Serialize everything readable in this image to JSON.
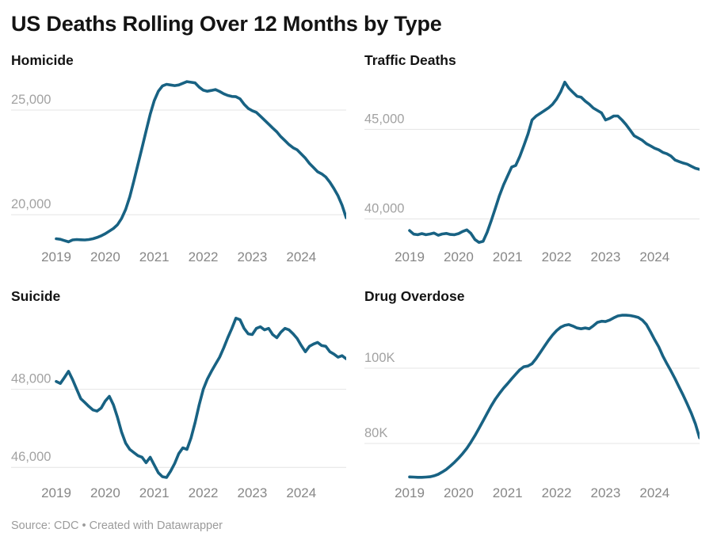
{
  "title": "US Deaths Rolling Over 12 Months by Type",
  "footer": {
    "source_label": "Source: ",
    "source": "CDC",
    "separator": " • ",
    "credit": "Created with Datawrapper"
  },
  "style": {
    "line_color": "#186283",
    "grid_color": "#e4e4e4",
    "y_label_color": "#a2a2a2",
    "x_label_color": "#878787",
    "line_width": 3.6
  },
  "chart_data": [
    {
      "type": "line",
      "title": "Homicide",
      "x_unit": "month",
      "x_range": [
        "2019-01",
        "2024-12"
      ],
      "x_tick_labels": [
        "2019",
        "2020",
        "2021",
        "2022",
        "2023",
        "2024"
      ],
      "y_gridlines": [
        {
          "value": 25000,
          "label": "25,000"
        },
        {
          "value": 20000,
          "label": "20,000"
        }
      ],
      "ylim": [
        18640,
        26780
      ],
      "values": [
        18850,
        18820,
        18760,
        18700,
        18790,
        18810,
        18800,
        18790,
        18810,
        18850,
        18910,
        18990,
        19090,
        19210,
        19340,
        19520,
        19820,
        20250,
        20850,
        21600,
        22400,
        23200,
        24000,
        24800,
        25450,
        25900,
        26150,
        26230,
        26200,
        26170,
        26200,
        26280,
        26360,
        26330,
        26300,
        26100,
        25950,
        25900,
        25940,
        25980,
        25890,
        25780,
        25700,
        25650,
        25640,
        25540,
        25280,
        25080,
        24970,
        24890,
        24710,
        24520,
        24330,
        24140,
        23960,
        23730,
        23540,
        23350,
        23200,
        23100,
        22900,
        22700,
        22450,
        22250,
        22050,
        21950,
        21800,
        21550,
        21250,
        20900,
        20450,
        19850
      ]
    },
    {
      "type": "line",
      "title": "Traffic Deaths",
      "x_unit": "month",
      "x_range": [
        "2019-01",
        "2024-12"
      ],
      "x_tick_labels": [
        "2019",
        "2020",
        "2021",
        "2022",
        "2023",
        "2024"
      ],
      "y_gridlines": [
        {
          "value": 45000,
          "label": "45,000"
        },
        {
          "value": 40000,
          "label": "40,000"
        }
      ],
      "ylim": [
        38650,
        48160
      ],
      "values": [
        39350,
        39150,
        39120,
        39180,
        39120,
        39160,
        39210,
        39090,
        39160,
        39190,
        39130,
        39120,
        39180,
        39300,
        39390,
        39200,
        38850,
        38690,
        38750,
        39250,
        39900,
        40600,
        41300,
        41900,
        42400,
        42900,
        42990,
        43500,
        44100,
        44750,
        45530,
        45750,
        45900,
        46050,
        46200,
        46400,
        46700,
        47100,
        47640,
        47300,
        47070,
        46850,
        46800,
        46580,
        46410,
        46190,
        46060,
        45920,
        45530,
        45620,
        45750,
        45750,
        45530,
        45270,
        44960,
        44650,
        44520,
        44390,
        44200,
        44080,
        43950,
        43860,
        43720,
        43640,
        43510,
        43290,
        43200,
        43120,
        43060,
        42940,
        42830,
        42770
      ]
    },
    {
      "type": "line",
      "title": "Suicide",
      "x_unit": "month",
      "x_range": [
        "2019-01",
        "2024-12"
      ],
      "x_tick_labels": [
        "2019",
        "2020",
        "2021",
        "2022",
        "2023",
        "2024"
      ],
      "y_gridlines": [
        {
          "value": 48000,
          "label": "48,000"
        },
        {
          "value": 46000,
          "label": "46,000"
        }
      ],
      "ylim": [
        45700,
        50060
      ],
      "values": [
        48200,
        48150,
        48300,
        48460,
        48250,
        48000,
        47760,
        47660,
        47560,
        47470,
        47440,
        47520,
        47700,
        47820,
        47600,
        47280,
        46900,
        46620,
        46460,
        46380,
        46300,
        46260,
        46120,
        46260,
        46060,
        45860,
        45760,
        45740,
        45900,
        46100,
        46350,
        46500,
        46460,
        46750,
        47150,
        47600,
        48000,
        48260,
        48460,
        48640,
        48820,
        49060,
        49320,
        49560,
        49820,
        49780,
        49560,
        49420,
        49400,
        49560,
        49600,
        49520,
        49560,
        49400,
        49320,
        49460,
        49560,
        49520,
        49420,
        49300,
        49120,
        48960,
        49100,
        49160,
        49200,
        49120,
        49100,
        48960,
        48900,
        48820,
        48860,
        48780
      ]
    },
    {
      "type": "line",
      "title": "Drug Overdose",
      "x_unit": "month",
      "x_range": [
        "2019-01",
        "2024-12"
      ],
      "x_tick_labels": [
        "2019",
        "2020",
        "2021",
        "2022",
        "2023",
        "2024"
      ],
      "y_gridlines": [
        {
          "value": 100000,
          "label": "100K"
        },
        {
          "value": 80000,
          "label": "80K"
        }
      ],
      "ylim": [
        70530,
        115800
      ],
      "values": [
        71100,
        71050,
        71000,
        71000,
        71050,
        71150,
        71400,
        71800,
        72400,
        73100,
        74000,
        75000,
        76100,
        77300,
        78700,
        80300,
        82100,
        84000,
        86000,
        88000,
        90000,
        91800,
        93300,
        94700,
        95900,
        97200,
        98400,
        99600,
        100400,
        100600,
        101200,
        102600,
        104200,
        105800,
        107400,
        108800,
        110000,
        110900,
        111400,
        111600,
        111200,
        110700,
        110500,
        110700,
        110500,
        111300,
        112200,
        112500,
        112400,
        112800,
        113400,
        113900,
        114100,
        114100,
        114000,
        113800,
        113500,
        112800,
        111600,
        109700,
        107600,
        105700,
        103300,
        101200,
        99300,
        97200,
        95000,
        92800,
        90500,
        88000,
        85200,
        81500
      ]
    }
  ]
}
